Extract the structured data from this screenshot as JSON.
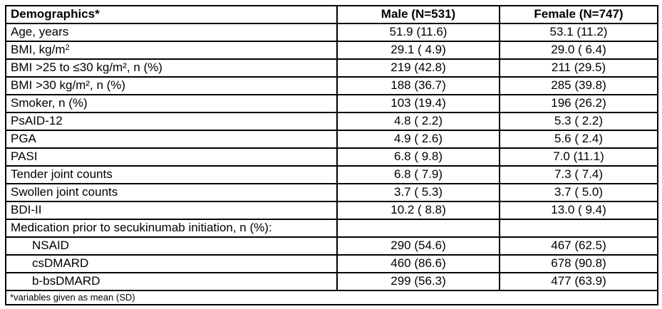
{
  "colors": {
    "background": "#ffffff",
    "border": "#000000",
    "text": "#000000"
  },
  "table": {
    "header": {
      "col1": "Demographics*",
      "col2": "Male (N=531)",
      "col3": "Female (N=747)"
    },
    "rows": [
      {
        "label": "Age, years",
        "values": [
          "51.9 (11.6)",
          "53.1 (11.2)"
        ]
      },
      {
        "label": "BMI, kg/m",
        "sup": "2",
        "values": [
          "29.1 ( 4.9)",
          "29.0 ( 6.4)"
        ]
      },
      {
        "label": "BMI >25 to ≤30 kg/m², n (%)",
        "values": [
          "219 (42.8)",
          "211 (29.5)"
        ]
      },
      {
        "label": "BMI >30 kg/m², n (%)",
        "values": [
          "188 (36.7)",
          "285 (39.8)"
        ]
      },
      {
        "label": "Smoker, n (%)",
        "values": [
          "103 (19.4)",
          "196 (26.2)"
        ]
      },
      {
        "label": "PsAID-12",
        "values": [
          "4.8 ( 2.2)",
          "5.3 ( 2.2)"
        ]
      },
      {
        "label": "PGA",
        "values": [
          "4.9 ( 2.6)",
          "5.6 ( 2.4)"
        ]
      },
      {
        "label": "PASI",
        "values": [
          "6.8 ( 9.8)",
          "7.0 (11.1)"
        ]
      },
      {
        "label": "Tender joint counts",
        "values": [
          "6.8 ( 7.9)",
          "7.3 ( 7.4)"
        ]
      },
      {
        "label": "Swollen joint counts",
        "values": [
          "3.7 ( 5.3)",
          "3.7 ( 5.0)"
        ]
      },
      {
        "label": "BDI-II",
        "values": [
          "10.2 ( 8.8)",
          "13.0 ( 9.4)"
        ]
      },
      {
        "label": "Medication prior to secukinumab initiation, n (%):",
        "values": [
          "",
          ""
        ]
      },
      {
        "label": "NSAID",
        "values": [
          "290 (54.6)",
          "467 (62.5)"
        ]
      },
      {
        "label": "csDMARD",
        "values": [
          "460 (86.6)",
          "678 (90.8)"
        ]
      },
      {
        "label": "b-bsDMARD",
        "values": [
          "299 (56.3)",
          "477 (63.9)"
        ]
      }
    ],
    "footnote": "*variables given as mean (SD)"
  }
}
